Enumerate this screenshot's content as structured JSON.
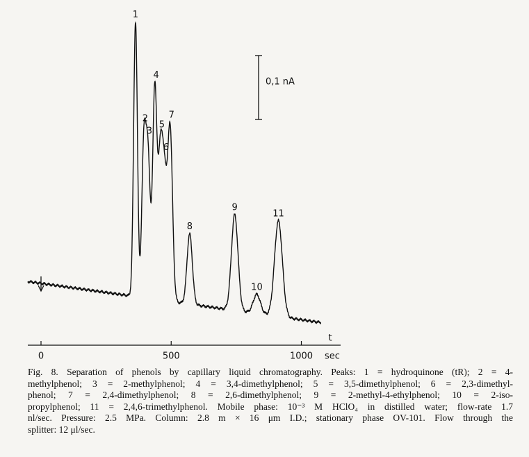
{
  "figure": {
    "axis": {
      "ticks": [
        0,
        500,
        1000
      ],
      "unit": "sec",
      "label": "t"
    },
    "scale_bar": {
      "label": "0,1 nA",
      "value": 0.1
    },
    "peaks": [
      {
        "label": "1",
        "t": 363,
        "height": 0.43
      },
      {
        "label": "2",
        "t": 395,
        "height": 0.24
      },
      {
        "label": "3",
        "t": 411,
        "height": 0.22
      },
      {
        "label": "4",
        "t": 437,
        "height": 0.33
      },
      {
        "label": "5",
        "t": 459,
        "height": 0.22
      },
      {
        "label": "6",
        "t": 475,
        "height": 0.17
      },
      {
        "label": "7",
        "t": 496,
        "height": 0.27
      },
      {
        "label": "8",
        "t": 571,
        "height": 0.11
      },
      {
        "label": "9",
        "t": 744,
        "height": 0.15
      },
      {
        "label": "10",
        "t": 829,
        "height": 0.03
      },
      {
        "label": "11",
        "t": 912,
        "height": 0.15
      }
    ]
  },
  "caption": {
    "lines": [
      "Fig. 8. Separation of phenols by capillary liquid chromatography. Peaks: 1 = hydroquinone (tR); 2 = 4-",
      "methylphenol; 3 = 2-methylphenol; 4 = 3,4-dimethylphenol; 5 = 3,5-dimethylphenol; 6 = 2,3-dimethyl-",
      "phenol; 7 = 2,4-dimethylphenol; 8 = 2,6-dimethylphenol; 9 = 2-methyl-4-ethylphenol; 10 = 2-iso-",
      "propylphenol; 11 = 2,4,6-trimethylphenol. Mobile phase: 10⁻³ M HClO₄ in distilled water; flow-rate 1.7",
      "nl/sec. Pressure: 2.5 MPa. Column: 2.8 m × 16 μm I.D.; stationary phase OV-101. Flow through the",
      "splitter: 12 μl/sec."
    ]
  }
}
